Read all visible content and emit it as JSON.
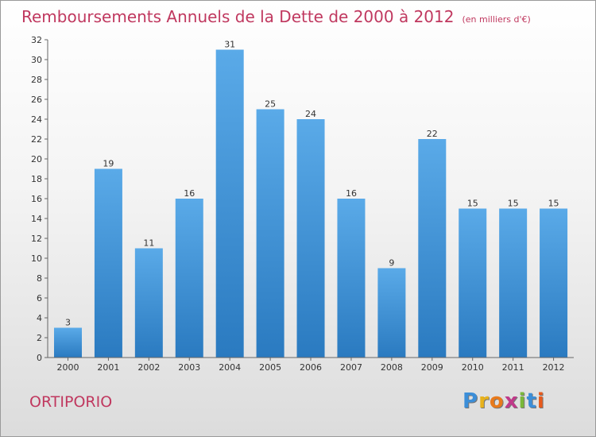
{
  "title": "Remboursements Annuels de la Dette de 2000 à 2012",
  "subtitle": "(en milliers d'€)",
  "commune": "ORTIPORIO",
  "logo": {
    "letters": [
      "P",
      "r",
      "o",
      "x",
      "i",
      "t",
      "i"
    ],
    "colors": [
      "#3b8ed8",
      "#e8b21c",
      "#e87a1c",
      "#c03a8a",
      "#7ab83a",
      "#3b8ed8",
      "#e85a1c"
    ]
  },
  "chart_data": {
    "type": "bar",
    "categories": [
      "2000",
      "2001",
      "2002",
      "2003",
      "2004",
      "2005",
      "2006",
      "2007",
      "2008",
      "2009",
      "2010",
      "2011",
      "2012"
    ],
    "values": [
      3,
      19,
      11,
      16,
      31,
      25,
      24,
      16,
      9,
      22,
      15,
      15,
      15
    ],
    "title": "Remboursements Annuels de la Dette de 2000 à 2012",
    "xlabel": "",
    "ylabel": "",
    "ylim": [
      0,
      32
    ],
    "yticks": [
      0,
      2,
      4,
      6,
      8,
      10,
      12,
      14,
      16,
      18,
      20,
      22,
      24,
      26,
      28,
      30,
      32
    ],
    "grid": false,
    "bar_color_top": "#5aaae8",
    "bar_color_bottom": "#2a7ac0"
  }
}
